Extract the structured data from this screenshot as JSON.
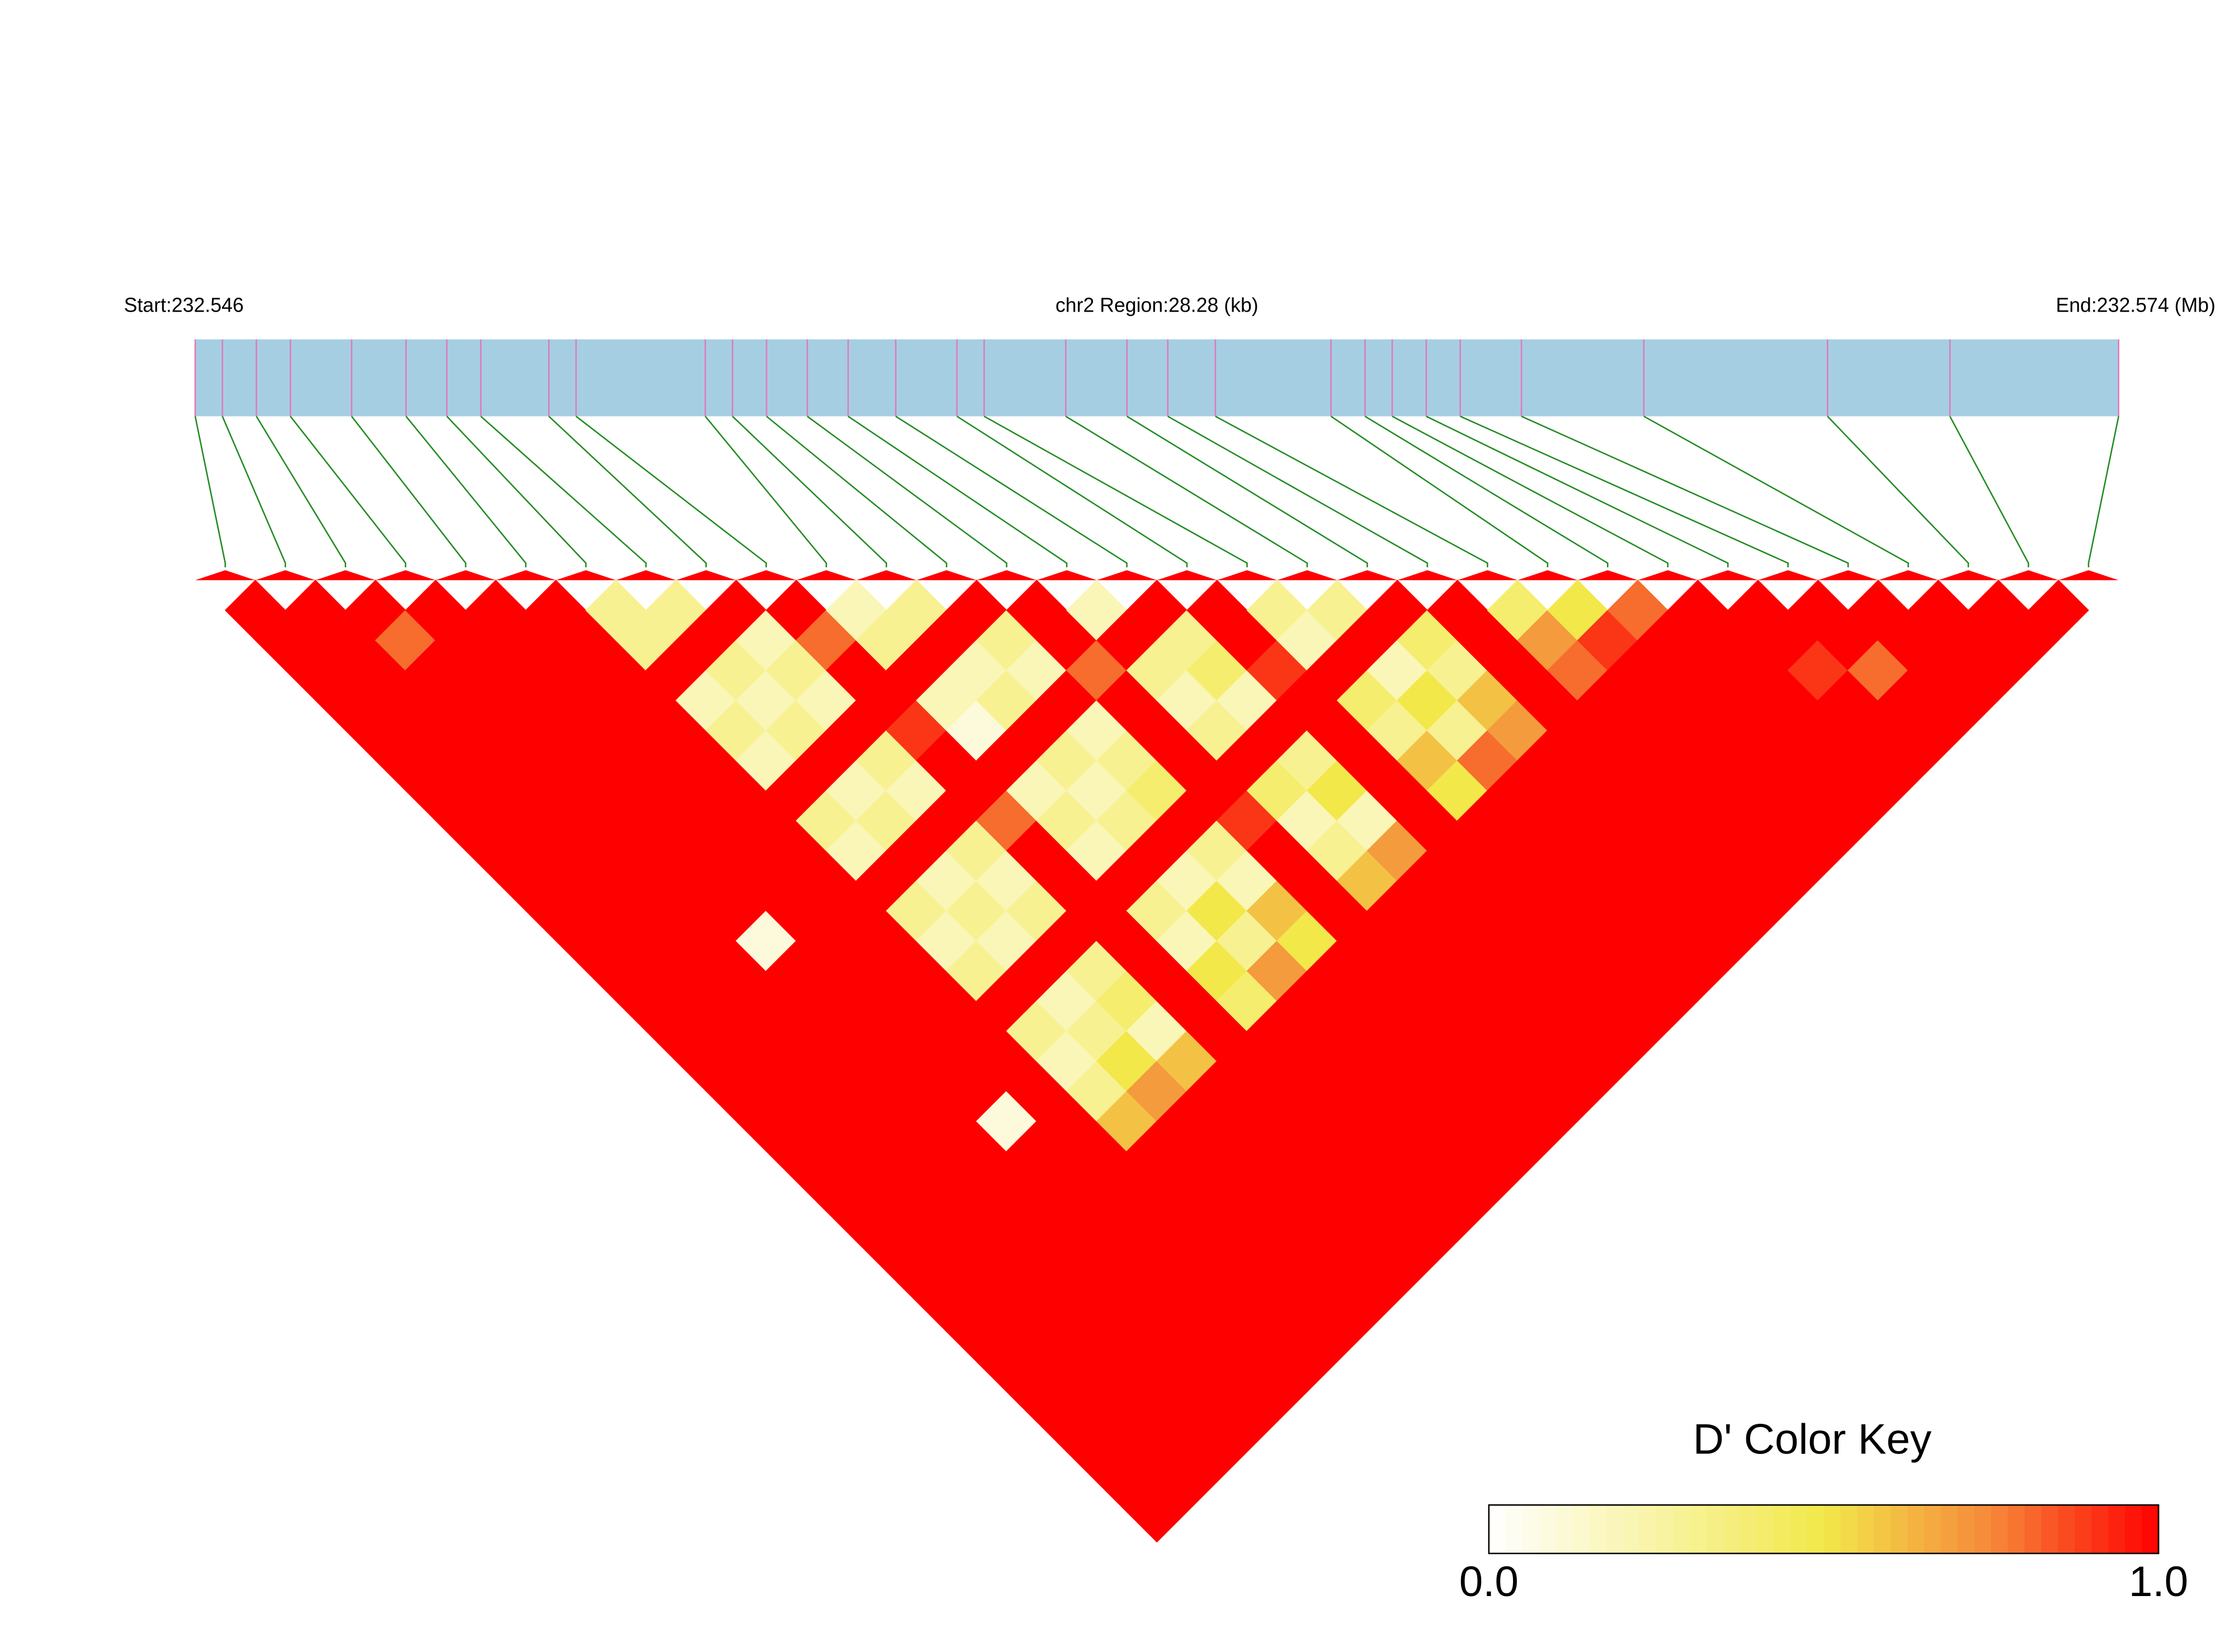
{
  "chart_data": {
    "type": "ld-heatmap",
    "start_label": "Start:232.546",
    "region_label": "chr2 Region:28.28 (kb)",
    "end_label": "End:232.574 (Mb)",
    "xlim": [
      0,
      28.28
    ],
    "positions": [
      0,
      0.4,
      0.9,
      1.4,
      2.3,
      3.1,
      3.7,
      4.2,
      5.2,
      5.6,
      7.5,
      7.9,
      8.4,
      9.0,
      9.6,
      10.3,
      11.2,
      11.6,
      12.8,
      13.7,
      14.3,
      15.0,
      16.7,
      17.2,
      17.6,
      18.1,
      18.6,
      19.5,
      21.3,
      24.0,
      25.8,
      28.28
    ],
    "matrix": [
      [
        1,
        1,
        1,
        1,
        1,
        1,
        1,
        1,
        1,
        1,
        1,
        1,
        1,
        1,
        1,
        1,
        1,
        1,
        1,
        1,
        1,
        1,
        1,
        1,
        1,
        1,
        1,
        1,
        1,
        1,
        1
      ],
      [
        1,
        1,
        1,
        1,
        1,
        1,
        1,
        1,
        1,
        1,
        1,
        1,
        1,
        1,
        1,
        1,
        1,
        1,
        1,
        1,
        1,
        1,
        1,
        1,
        1,
        1,
        1,
        1,
        1,
        1
      ],
      [
        1,
        0.8,
        1,
        1,
        1,
        1,
        1,
        1,
        1,
        1,
        1,
        1,
        1,
        1,
        1,
        1,
        1,
        1,
        1,
        1,
        1,
        1,
        1,
        1,
        1,
        1,
        1,
        1,
        1
      ],
      [
        1,
        1,
        1,
        1,
        1,
        1,
        1,
        1,
        1,
        1,
        1,
        0.1,
        1,
        1,
        1,
        1,
        1,
        1,
        1,
        1,
        1,
        1,
        1,
        1,
        1,
        1,
        1,
        1
      ],
      [
        1,
        1,
        1,
        1,
        1,
        1,
        1,
        1,
        1,
        1,
        1,
        1,
        1,
        1,
        1,
        1,
        1,
        0.1,
        1,
        1,
        1,
        1,
        1,
        1,
        1,
        1,
        1
      ],
      [
        1,
        1,
        1,
        1,
        1,
        1,
        1,
        1,
        1,
        1,
        1,
        1,
        1,
        1,
        1,
        1,
        1,
        1,
        1,
        1,
        1,
        1,
        1,
        1,
        1,
        1
      ],
      [
        0.3,
        0.3,
        1,
        0.2,
        0.3,
        0.2,
        1,
        0.3,
        0.2,
        1,
        0.3,
        0.2,
        0.3,
        1,
        0.3,
        0.2,
        0.3,
        0.6,
        1,
        1,
        1,
        1,
        1,
        1,
        1
      ],
      [
        0.3,
        1,
        0.3,
        0.2,
        0.3,
        1,
        0.2,
        0.3,
        1,
        0.2,
        0.3,
        0.2,
        1,
        0.2,
        0.3,
        0.5,
        0.7,
        1,
        1,
        1,
        1,
        1,
        1,
        1
      ],
      [
        1,
        0.2,
        0.3,
        0.2,
        1,
        0.3,
        0.2,
        1,
        0.3,
        0.2,
        0.3,
        1,
        0.3,
        0.4,
        0.2,
        0.6,
        1,
        1,
        1,
        1,
        1,
        1,
        1
      ],
      [
        1,
        0.8,
        1,
        1,
        0.9,
        1,
        1,
        0.8,
        1,
        1,
        1,
        1,
        1,
        1,
        1,
        1,
        1,
        1,
        1,
        1,
        1,
        1
      ],
      [
        0.2,
        0.3,
        1,
        0.2,
        0.1,
        1,
        0.2,
        0.3,
        0.2,
        1,
        0.3,
        0.2,
        0.5,
        0.4,
        1,
        1,
        1,
        1,
        1,
        1,
        1
      ],
      [
        0.3,
        1,
        0.2,
        0.3,
        1,
        0.3,
        0.2,
        0.3,
        1,
        0.2,
        0.5,
        0.3,
        0.7,
        1,
        1,
        1,
        1,
        1,
        1,
        1
      ],
      [
        1,
        0.3,
        0.2,
        1,
        0.2,
        0.3,
        0.4,
        1,
        0.3,
        0.2,
        0.6,
        0.5,
        1,
        1,
        1,
        1,
        1,
        1,
        1
      ],
      [
        1,
        1,
        0.8,
        1,
        1,
        1,
        1,
        0.9,
        1,
        1,
        1,
        1,
        1,
        1,
        1,
        1,
        1,
        1
      ],
      [
        0.2,
        1,
        0.3,
        0.2,
        0.3,
        1,
        0.4,
        0.2,
        0.3,
        0.6,
        1,
        1,
        1,
        1,
        1,
        1,
        1
      ],
      [
        1,
        0.3,
        0.4,
        0.2,
        1,
        0.3,
        0.5,
        0.2,
        0.7,
        1,
        1,
        1,
        1,
        1,
        1,
        1
      ],
      [
        1,
        1,
        0.9,
        1,
        1,
        1,
        1,
        1,
        1,
        1,
        1,
        1,
        1,
        1,
        1
      ],
      [
        0.3,
        0.2,
        1,
        0.4,
        0.3,
        0.6,
        0.5,
        1,
        1,
        1,
        1,
        1,
        1,
        1
      ],
      [
        0.3,
        1,
        0.2,
        0.5,
        0.3,
        0.8,
        1,
        1,
        1,
        1,
        1,
        1,
        1
      ],
      [
        1,
        0.4,
        0.3,
        0.6,
        0.7,
        1,
        1,
        1,
        1,
        1,
        1,
        1
      ],
      [
        1,
        1,
        1,
        1,
        1,
        1,
        1,
        1,
        1,
        1,
        1
      ],
      [
        0.4,
        0.7,
        0.8,
        1,
        1,
        1,
        1,
        1,
        1,
        1
      ],
      [
        0.5,
        0.9,
        1,
        1,
        1,
        1,
        1,
        1,
        1
      ],
      [
        0.8,
        1,
        1,
        1,
        1,
        1,
        1,
        1
      ],
      [
        1,
        1,
        1,
        1,
        1,
        1,
        1
      ],
      [
        1,
        1,
        0.9,
        1,
        1,
        1
      ],
      [
        1,
        1,
        0.8,
        1,
        1
      ],
      [
        1,
        1,
        1,
        1
      ],
      [
        1,
        1,
        1
      ],
      [
        1,
        1
      ],
      [
        1
      ]
    ],
    "color_stops": [
      {
        "value": 0,
        "color": "#ffffff"
      },
      {
        "value": 0.5,
        "color": "#f2e84a"
      },
      {
        "value": 0.75,
        "color": "#f5883a"
      },
      {
        "value": 1,
        "color": "#ff0000"
      }
    ],
    "bar_color": "#a6cee3",
    "tick_color": "#e07ab8",
    "link_color": "#228b22",
    "key_title": "D' Color Key",
    "key_ticks": [
      {
        "value": 0,
        "label": "0.0"
      },
      {
        "value": 1,
        "label": "1.0"
      }
    ]
  }
}
